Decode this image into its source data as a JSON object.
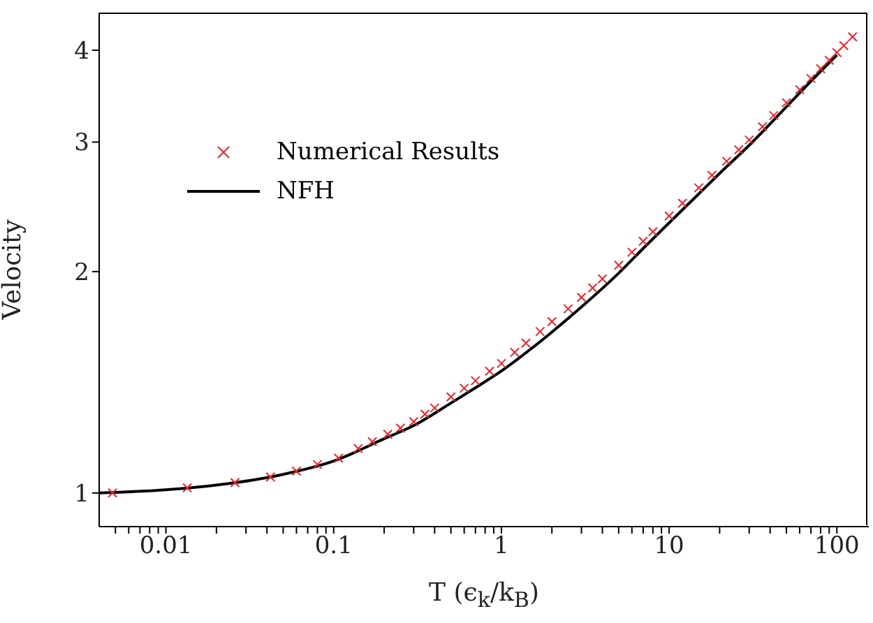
{
  "chart_data": {
    "type": "line",
    "xlabel": "T (ϵ$_{k}$/k$_{B}$)",
    "ylabel": "Velocity",
    "log": "xy",
    "legend": "top left",
    "grid": false,
    "xlim": [
      0.004,
      155
    ],
    "ylim": [
      0.9,
      4.5
    ],
    "xticks": [
      {
        "value": 0.005,
        "label": null
      },
      {
        "value": 0.006,
        "label": null
      },
      {
        "value": 0.007,
        "label": null
      },
      {
        "value": 0.008,
        "label": null
      },
      {
        "value": 0.009,
        "label": null
      },
      0.01,
      {
        "value": 0.02,
        "label": null
      },
      {
        "value": 0.03,
        "label": null
      },
      {
        "value": 0.04,
        "label": null
      },
      {
        "value": 0.05,
        "label": null
      },
      {
        "value": 0.06,
        "label": null
      },
      {
        "value": 0.07,
        "label": null
      },
      {
        "value": 0.08,
        "label": null
      },
      {
        "value": 0.09,
        "label": null
      },
      0.1,
      {
        "value": 0.2,
        "label": null
      },
      {
        "value": 0.3,
        "label": null
      },
      {
        "value": 0.4,
        "label": null
      },
      {
        "value": 0.5,
        "label": null
      },
      {
        "value": 0.6,
        "label": null
      },
      {
        "value": 0.7,
        "label": null
      },
      {
        "value": 0.8,
        "label": null
      },
      {
        "value": 0.9,
        "label": null
      },
      1,
      {
        "value": 2,
        "label": null
      },
      {
        "value": 3,
        "label": null
      },
      {
        "value": 4,
        "label": null
      },
      {
        "value": 5,
        "label": null
      },
      {
        "value": 6,
        "label": null
      },
      {
        "value": 7,
        "label": null
      },
      {
        "value": 8,
        "label": null
      },
      {
        "value": 9,
        "label": null
      },
      10,
      {
        "value": 20,
        "label": null
      },
      {
        "value": 30,
        "label": null
      },
      {
        "value": 40,
        "label": null
      },
      {
        "value": 50,
        "label": null
      },
      {
        "value": 60,
        "label": null
      },
      {
        "value": 70,
        "label": null
      },
      {
        "value": 80,
        "label": null
      },
      {
        "value": 90,
        "label": null
      },
      100
    ],
    "yticks": [
      1,
      2,
      3,
      4
    ],
    "series": [
      {
        "name": "Numerical Results",
        "type": "scatter",
        "marker": "cross",
        "color": "#e8262b",
        "x": [
          0.0048,
          0.0134,
          0.0258,
          0.042,
          0.06,
          0.08,
          0.107,
          0.14,
          0.17,
          0.21,
          0.25,
          0.3,
          0.35,
          0.4,
          0.5,
          0.6,
          0.7,
          0.85,
          1,
          1.2,
          1.4,
          1.7,
          2,
          2.5,
          3,
          3.5,
          4,
          5,
          6,
          7,
          8,
          10,
          12,
          15,
          18,
          22,
          26,
          30,
          36,
          42,
          50,
          60,
          70,
          80,
          90,
          100,
          110,
          124
        ],
        "values": [
          1.0,
          1.016,
          1.033,
          1.051,
          1.071,
          1.093,
          1.115,
          1.149,
          1.174,
          1.202,
          1.225,
          1.25,
          1.28,
          1.305,
          1.351,
          1.388,
          1.421,
          1.464,
          1.5,
          1.553,
          1.599,
          1.658,
          1.71,
          1.78,
          1.845,
          1.9,
          1.955,
          2.04,
          2.125,
          2.199,
          2.266,
          2.38,
          2.477,
          2.6,
          2.704,
          2.825,
          2.928,
          3.02,
          3.147,
          3.26,
          3.393,
          3.535,
          3.661,
          3.774,
          3.876,
          3.97,
          4.058,
          4.17
        ]
      },
      {
        "name": "NFH",
        "marker": "none",
        "line_style": "solid",
        "color": "#000000",
        "x": [
          0.004,
          0.01,
          0.02,
          0.05,
          0.1,
          0.2,
          0.3,
          0.5,
          0.7,
          1,
          1.5,
          2,
          3,
          5,
          7,
          10,
          15,
          20,
          30,
          50,
          70,
          100
        ],
        "values": [
          1.0,
          1.01,
          1.025,
          1.06,
          1.105,
          1.185,
          1.235,
          1.325,
          1.39,
          1.465,
          1.57,
          1.655,
          1.79,
          1.99,
          2.15,
          2.33,
          2.55,
          2.72,
          2.97,
          3.35,
          3.63,
          3.94
        ]
      }
    ]
  }
}
